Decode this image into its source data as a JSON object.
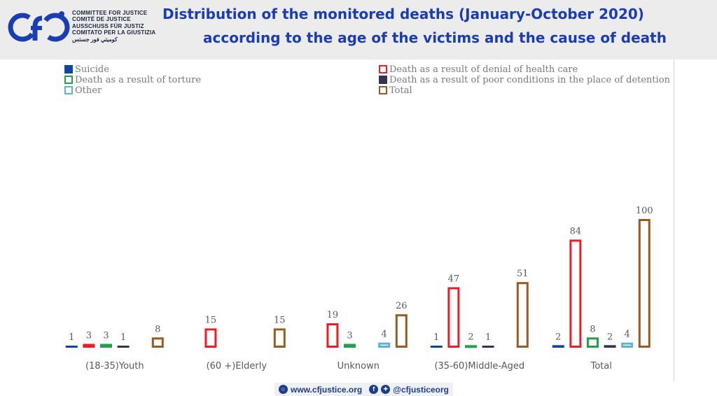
{
  "header": {
    "org_lines": [
      "COMMITTEE FOR JUSTICE",
      "COMITÉ DE JUSTICE",
      "AUSSCHUSS FÜR JUSTIZ",
      "COMITATO PER LA GIUSTIZIA",
      "كوميتي فور جستس"
    ],
    "title_line1": "Distribution of the monitored deaths (January-October 2020)",
    "title_line2": "according to the age of the victims and the cause of death",
    "title_color": "#1a3db5"
  },
  "footer": {
    "website": "www.cfjustice.org",
    "social": "@cfjusticeorg"
  },
  "chart_data": {
    "type": "bar",
    "title": "Distribution of the monitored deaths (January-October 2020) according to the age of the victims and the cause of death",
    "categories": [
      "(18-35)Youth",
      "(60 +)Elderly",
      "Unknown",
      "(35-60)Middle-Aged",
      "Total"
    ],
    "series": [
      {
        "name": "Suicide",
        "color": "#0d47a1",
        "fill": true,
        "values": [
          1,
          null,
          null,
          1,
          2
        ]
      },
      {
        "name": "Death as a result of denial of health care",
        "color": "#ee1c25",
        "fill": false,
        "values": [
          3,
          15,
          19,
          47,
          84
        ]
      },
      {
        "name": "Death as a result of torture",
        "color": "#1fa34a",
        "fill": false,
        "values": [
          3,
          null,
          3,
          2,
          8
        ]
      },
      {
        "name": "Death as a result of poor conditions in the place of detention",
        "color": "#3b3152",
        "fill": true,
        "values": [
          1,
          null,
          null,
          1,
          2
        ]
      },
      {
        "name": "Other",
        "color": "#5bb3d6",
        "fill": false,
        "values": [
          null,
          null,
          4,
          null,
          4
        ]
      },
      {
        "name": "Total",
        "color": "#9c5a1e",
        "fill": false,
        "values": [
          8,
          15,
          26,
          51,
          100
        ]
      }
    ],
    "ylim": [
      0,
      100
    ],
    "legend_position": "top",
    "grid": false
  }
}
